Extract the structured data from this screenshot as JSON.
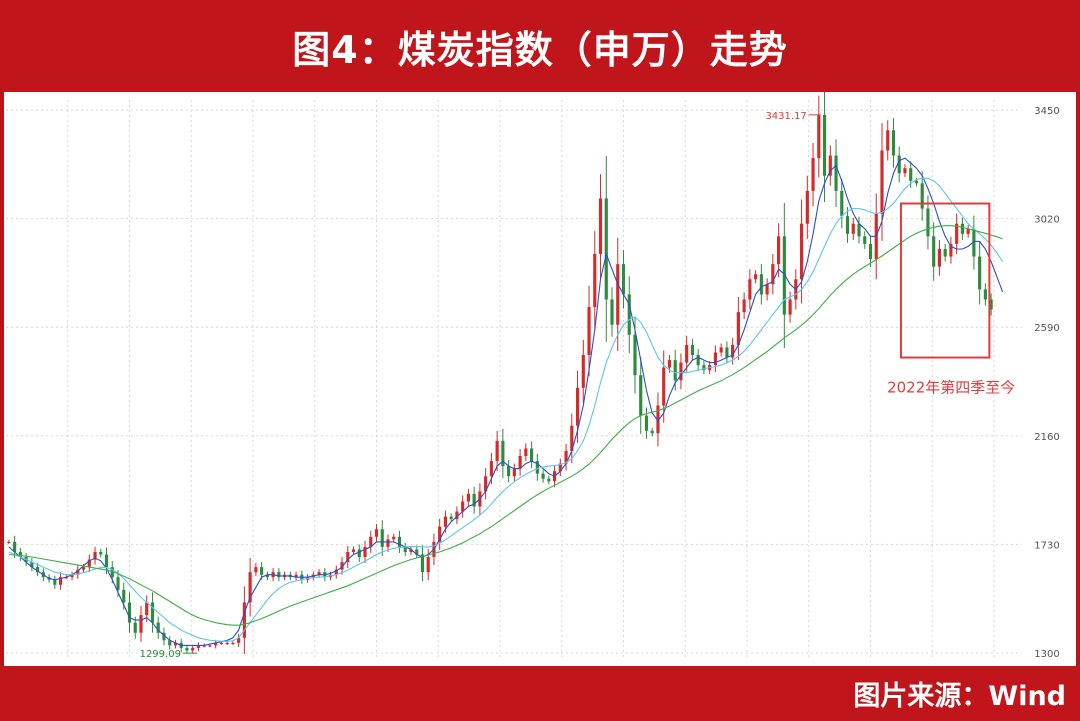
{
  "header": {
    "title": "图4：煤炭指数（申万）走势"
  },
  "footer": {
    "source": "图片来源：Wind"
  },
  "colors": {
    "frame": "#c0151b",
    "candle_up": "#d42a2a",
    "candle_down": "#2e8b3e",
    "ma_short": "#2b4fc8",
    "ma_mid": "#5bc8e8",
    "ma_long": "#3fae45",
    "grid": "#d7d7d7",
    "annotation": "#e23b3b",
    "min_label": "#2e8b3e"
  },
  "chart_data": {
    "type": "line",
    "title": "",
    "xlabel": "",
    "ylabel": "",
    "ylim": [
      1280,
      3490
    ],
    "yticks": [
      "3450",
      "3020",
      "2590",
      "2160",
      "1730",
      "1300"
    ],
    "grid": true,
    "legend": "none",
    "extremes": {
      "max": {
        "label": "3431.17",
        "value": 3431.17,
        "index": 141
      },
      "min": {
        "label": "1299.09",
        "value": 1299.09,
        "index": 31
      }
    },
    "annotation": {
      "text": "2022年第四季至今",
      "from_index": 156,
      "to_index": 170,
      "y_low": 2470,
      "y_high": 3080
    },
    "series": [
      {
        "name": "",
        "role": "close",
        "values": [
          1740,
          1700,
          1680,
          1660,
          1640,
          1620,
          1600,
          1590,
          1570,
          1600,
          1600,
          1610,
          1630,
          1640,
          1670,
          1700,
          1690,
          1640,
          1600,
          1550,
          1500,
          1420,
          1380,
          1450,
          1500,
          1420,
          1380,
          1350,
          1330,
          1340,
          1320,
          1310,
          1320,
          1330,
          1330,
          1330,
          1340,
          1340,
          1340,
          1340,
          1360,
          1500,
          1620,
          1640,
          1610,
          1600,
          1620,
          1600,
          1610,
          1600,
          1610,
          1590,
          1600,
          1610,
          1620,
          1600,
          1610,
          1630,
          1660,
          1700,
          1710,
          1680,
          1720,
          1760,
          1790,
          1720,
          1750,
          1760,
          1720,
          1700,
          1710,
          1690,
          1620,
          1680,
          1740,
          1800,
          1840,
          1830,
          1860,
          1900,
          1930,
          1880,
          1940,
          2000,
          2060,
          2140,
          2040,
          2000,
          2030,
          2080,
          2110,
          2060,
          2010,
          1990,
          1980,
          2020,
          2050,
          2100,
          2200,
          2350,
          2480,
          2670,
          2880,
          3100,
          2700,
          2600,
          2840,
          2720,
          2560,
          2400,
          2240,
          2180,
          2170,
          2280,
          2430,
          2460,
          2380,
          2450,
          2520,
          2480,
          2440,
          2420,
          2440,
          2490,
          2510,
          2470,
          2520,
          2650,
          2700,
          2780,
          2800,
          2720,
          2760,
          2840,
          2950,
          2640,
          2700,
          2780,
          3000,
          3130,
          3260,
          3431,
          3190,
          3270,
          3130,
          3030,
          2960,
          3000,
          2950,
          2920,
          2860,
          3040,
          3290,
          3370,
          3270,
          3200,
          3220,
          3170,
          3160,
          3060,
          2950,
          2830,
          2900,
          2870,
          2920,
          3000,
          2960,
          2980,
          2870,
          2740,
          2700,
          2660
        ]
      },
      {
        "name": "",
        "role": "ma-short",
        "values": [
          1720,
          1700,
          1680,
          1660,
          1640,
          1625,
          1610,
          1595,
          1590,
          1595,
          1600,
          1610,
          1625,
          1645,
          1665,
          1675,
          1665,
          1635,
          1590,
          1540,
          1490,
          1440,
          1430,
          1430,
          1440,
          1420,
          1390,
          1370,
          1350,
          1340,
          1330,
          1330,
          1330,
          1330,
          1330,
          1335,
          1340,
          1345,
          1350,
          1360,
          1390,
          1460,
          1520,
          1560,
          1600,
          1610,
          1610,
          1605,
          1605,
          1605,
          1600,
          1600,
          1600,
          1605,
          1610,
          1610,
          1615,
          1625,
          1640,
          1670,
          1690,
          1700,
          1710,
          1720,
          1740,
          1740,
          1740,
          1740,
          1730,
          1720,
          1710,
          1690,
          1680,
          1690,
          1710,
          1750,
          1790,
          1820,
          1840,
          1860,
          1880,
          1890,
          1910,
          1940,
          1990,
          2040,
          2060,
          2040,
          2030,
          2030,
          2050,
          2060,
          2050,
          2030,
          2010,
          2000,
          2020,
          2050,
          2100,
          2180,
          2280,
          2420,
          2580,
          2780,
          2880,
          2820,
          2760,
          2720,
          2680,
          2580,
          2460,
          2340,
          2250,
          2220,
          2250,
          2320,
          2370,
          2400,
          2430,
          2460,
          2470,
          2460,
          2450,
          2450,
          2460,
          2470,
          2480,
          2520,
          2580,
          2650,
          2720,
          2750,
          2760,
          2770,
          2820,
          2800,
          2760,
          2740,
          2770,
          2850,
          2960,
          3090,
          3160,
          3210,
          3230,
          3170,
          3100,
          3040,
          3000,
          2980,
          2950,
          2950,
          3010,
          3120,
          3200,
          3250,
          3260,
          3240,
          3220,
          3190,
          3140,
          3080,
          3010,
          2950,
          2910,
          2900,
          2900,
          2910,
          2930,
          2930,
          2900,
          2850,
          2790,
          2730
        ]
      },
      {
        "name": "",
        "role": "ma-mid",
        "values": [
          1700,
          1690,
          1680,
          1670,
          1660,
          1650,
          1640,
          1630,
          1620,
          1615,
          1610,
          1610,
          1612,
          1618,
          1625,
          1632,
          1638,
          1638,
          1630,
          1615,
          1595,
          1570,
          1545,
          1520,
          1500,
          1480,
          1460,
          1440,
          1420,
          1405,
          1390,
          1380,
          1370,
          1360,
          1355,
          1350,
          1348,
          1346,
          1346,
          1348,
          1360,
          1390,
          1420,
          1450,
          1480,
          1510,
          1535,
          1555,
          1570,
          1580,
          1585,
          1590,
          1595,
          1598,
          1600,
          1602,
          1605,
          1610,
          1618,
          1628,
          1640,
          1652,
          1664,
          1676,
          1690,
          1700,
          1708,
          1714,
          1718,
          1720,
          1722,
          1722,
          1720,
          1720,
          1724,
          1734,
          1748,
          1764,
          1780,
          1796,
          1812,
          1828,
          1846,
          1866,
          1890,
          1916,
          1940,
          1960,
          1978,
          1994,
          2008,
          2020,
          2030,
          2036,
          2040,
          2042,
          2046,
          2054,
          2070,
          2100,
          2140,
          2200,
          2280,
          2370,
          2450,
          2510,
          2560,
          2600,
          2620,
          2630,
          2610,
          2570,
          2520,
          2470,
          2440,
          2420,
          2410,
          2410,
          2410,
          2415,
          2420,
          2425,
          2430,
          2435,
          2440,
          2450,
          2460,
          2475,
          2495,
          2520,
          2550,
          2580,
          2610,
          2640,
          2670,
          2700,
          2710,
          2720,
          2740,
          2770,
          2810,
          2860,
          2910,
          2960,
          3000,
          3030,
          3050,
          3060,
          3060,
          3055,
          3045,
          3040,
          3045,
          3060,
          3080,
          3110,
          3140,
          3160,
          3175,
          3180,
          3180,
          3170,
          3150,
          3120,
          3090,
          3060,
          3030,
          3000,
          2980,
          2960,
          2940,
          2915,
          2885,
          2850
        ]
      },
      {
        "name": "",
        "role": "ma-long",
        "values": [
          1690,
          1688,
          1686,
          1683,
          1680,
          1676,
          1672,
          1668,
          1664,
          1660,
          1656,
          1652,
          1648,
          1644,
          1640,
          1636,
          1632,
          1628,
          1622,
          1614,
          1604,
          1594,
          1582,
          1570,
          1558,
          1546,
          1532,
          1518,
          1504,
          1490,
          1476,
          1462,
          1450,
          1440,
          1432,
          1426,
          1420,
          1416,
          1412,
          1410,
          1410,
          1414,
          1420,
          1428,
          1436,
          1446,
          1456,
          1466,
          1476,
          1486,
          1494,
          1502,
          1510,
          1518,
          1526,
          1534,
          1542,
          1550,
          1558,
          1566,
          1576,
          1586,
          1596,
          1606,
          1616,
          1626,
          1636,
          1646,
          1654,
          1662,
          1670,
          1676,
          1682,
          1688,
          1694,
          1700,
          1708,
          1716,
          1726,
          1736,
          1748,
          1760,
          1772,
          1786,
          1800,
          1816,
          1832,
          1848,
          1864,
          1880,
          1896,
          1912,
          1926,
          1940,
          1952,
          1964,
          1976,
          1988,
          2000,
          2014,
          2030,
          2048,
          2070,
          2094,
          2120,
          2146,
          2170,
          2192,
          2212,
          2228,
          2240,
          2248,
          2254,
          2260,
          2268,
          2278,
          2290,
          2302,
          2314,
          2326,
          2338,
          2348,
          2358,
          2368,
          2378,
          2390,
          2402,
          2416,
          2430,
          2446,
          2462,
          2478,
          2494,
          2512,
          2530,
          2548,
          2564,
          2580,
          2598,
          2618,
          2640,
          2664,
          2690,
          2716,
          2740,
          2762,
          2782,
          2800,
          2816,
          2830,
          2844,
          2858,
          2872,
          2888,
          2904,
          2920,
          2936,
          2950,
          2962,
          2972,
          2980,
          2986,
          2990,
          2992,
          2992,
          2990,
          2986,
          2980,
          2974,
          2968,
          2962,
          2955,
          2948,
          2940
        ]
      }
    ]
  }
}
